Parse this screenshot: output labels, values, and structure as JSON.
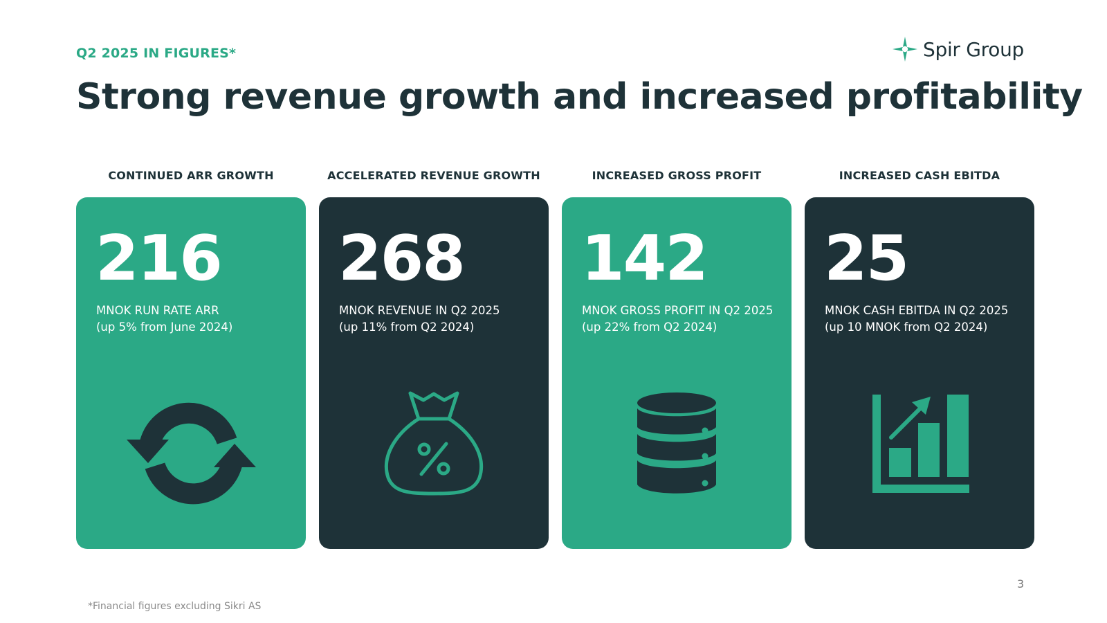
{
  "eyebrow": "Q2 2025 IN FIGURES*",
  "title": "Strong revenue growth and increased profitability",
  "logo": {
    "text": "Spir Group",
    "icon": "four-point-star-icon",
    "color": "#2ba986"
  },
  "colors": {
    "green": "#2ba986",
    "dark": "#1e3238",
    "white": "#ffffff"
  },
  "cards": [
    {
      "header": "CONTINUED ARR GROWTH",
      "value": "216",
      "line1": "MNOK RUN RATE ARR",
      "line2": "(up 5% from June 2024)",
      "icon": "refresh-arrows-icon",
      "theme": "green"
    },
    {
      "header": "ACCELERATED REVENUE GROWTH",
      "value": "268",
      "line1": "MNOK REVENUE IN Q2 2025",
      "line2": "(up 11% from Q2 2024)",
      "icon": "money-bag-percent-icon",
      "theme": "dark"
    },
    {
      "header": "INCREASED GROSS PROFIT",
      "value": "142",
      "line1": "MNOK GROSS PROFIT IN Q2 2025",
      "line2": "(up 22% from Q2 2024)",
      "icon": "database-icon",
      "theme": "green"
    },
    {
      "header": "INCREASED CASH EBITDA",
      "value": "25",
      "line1": "MNOK CASH EBITDA IN Q2 2025",
      "line2": "(up 10 MNOK from Q2 2024)",
      "icon": "growth-bar-chart-icon",
      "theme": "dark"
    }
  ],
  "page_number": "3",
  "footnote": "*Financial figures excluding Sikri AS"
}
